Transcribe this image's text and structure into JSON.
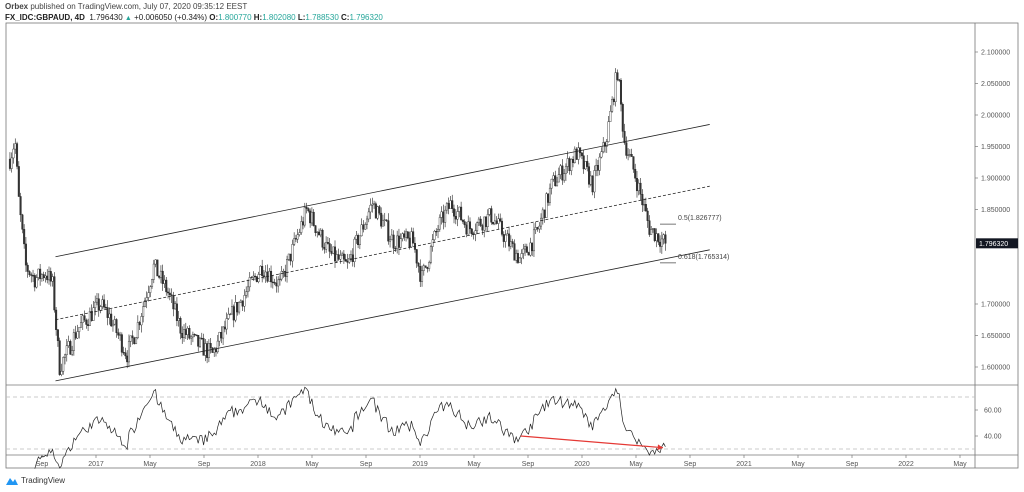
{
  "header": {
    "publisher": "Orbex",
    "published_text": "published on TradingView.com, July 07, 2020 09:35:12 EEST",
    "symbol": "FX_IDC:GBPAUD, 4D",
    "last": "1.796430",
    "change": "+0.006050 (+0.34%)",
    "o_label": "O:",
    "o": "1.800770",
    "h_label": "H:",
    "h": "1.802080",
    "l_label": "L:",
    "l": "1.788530",
    "c_label": "C:",
    "c": "1.796320"
  },
  "footer": {
    "brand": "TradingView",
    "icon": "tradingview-logo-icon"
  },
  "colors": {
    "up_candle": "#ffffff",
    "down_candle": "#333333",
    "accent": "#26a69a",
    "arrow": "#e53935",
    "price_tag": "#131722"
  },
  "chart_data": [
    {
      "type": "candlestick",
      "timeframe": "4D",
      "ylim": [
        1.575,
        2.115
      ],
      "y_ticks": [
        "2.100000",
        "2.050000",
        "2.000000",
        "1.950000",
        "1.900000",
        "1.850000",
        "1.700000",
        "1.650000",
        "1.600000"
      ],
      "y_tick_values": [
        2.1,
        2.05,
        2.0,
        1.95,
        1.9,
        1.85,
        1.7,
        1.65,
        1.6
      ],
      "current_price_label": "1.796320",
      "current_price": 1.79632,
      "x_ticks": [
        "Sep",
        "2017",
        "May",
        "Sep",
        "2018",
        "May",
        "Sep",
        "2019",
        "May",
        "Sep",
        "2020",
        "May",
        "Sep",
        "2021",
        "May",
        "Sep",
        "2022",
        "May"
      ],
      "x_tick_dates": [
        "2016-09",
        "2017-01",
        "2017-05",
        "2017-09",
        "2018-01",
        "2018-05",
        "2018-09",
        "2019-01",
        "2019-05",
        "2019-09",
        "2020-01",
        "2020-05",
        "2020-09",
        "2021-01",
        "2021-05",
        "2021-09",
        "2022-01",
        "2022-05"
      ],
      "approx_price_path": [
        [
          "2016-06-20",
          1.93
        ],
        [
          "2016-07-01",
          1.96
        ],
        [
          "2016-07-10",
          1.86
        ],
        [
          "2016-07-25",
          1.76
        ],
        [
          "2016-08-15",
          1.74
        ],
        [
          "2016-09-10",
          1.75
        ],
        [
          "2016-09-25",
          1.73
        ],
        [
          "2016-10-10",
          1.6
        ],
        [
          "2016-10-25",
          1.62
        ],
        [
          "2016-11-20",
          1.66
        ],
        [
          "2017-01-10",
          1.7
        ],
        [
          "2017-02-01",
          1.68
        ],
        [
          "2017-03-10",
          1.62
        ],
        [
          "2017-04-01",
          1.66
        ],
        [
          "2017-05-10",
          1.76
        ],
        [
          "2017-06-10",
          1.72
        ],
        [
          "2017-07-10",
          1.66
        ],
        [
          "2017-08-10",
          1.64
        ],
        [
          "2017-09-20",
          1.62
        ],
        [
          "2017-11-01",
          1.68
        ],
        [
          "2018-01-10",
          1.76
        ],
        [
          "2018-02-20",
          1.73
        ],
        [
          "2018-04-20",
          1.85
        ],
        [
          "2018-06-10",
          1.78
        ],
        [
          "2018-07-20",
          1.76
        ],
        [
          "2018-09-15",
          1.86
        ],
        [
          "2018-11-01",
          1.8
        ],
        [
          "2018-12-15",
          1.8
        ],
        [
          "2019-01-05",
          1.74
        ],
        [
          "2019-02-10",
          1.82
        ],
        [
          "2019-03-10",
          1.86
        ],
        [
          "2019-04-20",
          1.82
        ],
        [
          "2019-06-10",
          1.84
        ],
        [
          "2019-07-25",
          1.79
        ],
        [
          "2019-08-15",
          1.77
        ],
        [
          "2019-09-20",
          1.81
        ],
        [
          "2019-10-25",
          1.89
        ],
        [
          "2019-12-20",
          1.94
        ],
        [
          "2020-01-25",
          1.89
        ],
        [
          "2020-02-25",
          1.96
        ],
        [
          "2020-03-20",
          2.07
        ],
        [
          "2020-04-05",
          1.96
        ],
        [
          "2020-05-01",
          1.9
        ],
        [
          "2020-06-01",
          1.82
        ],
        [
          "2020-07-07",
          1.79632
        ]
      ],
      "trendlines": {
        "upper": [
          [
            "2016-10-01",
            1.775
          ],
          [
            "2020-10-15",
            1.985
          ]
        ],
        "middle_dashed": [
          [
            "2016-10-01",
            1.675
          ],
          [
            "2020-10-15",
            1.887
          ]
        ],
        "lower": [
          [
            "2016-10-01",
            1.578
          ],
          [
            "2020-10-15",
            1.786
          ]
        ]
      },
      "fib_levels": [
        {
          "label": "0.5(1.826777)",
          "value": 1.826777
        },
        {
          "label": "0.618(1.765314)",
          "value": 1.765314
        }
      ]
    },
    {
      "type": "line",
      "indicator_note": "oscillator pane",
      "ylim": [
        22,
        78
      ],
      "y_ticks": [
        "60.00",
        "40.00"
      ],
      "y_tick_values": [
        60,
        40
      ],
      "guide_levels": [
        70,
        30
      ],
      "divergence_arrow": [
        [
          "2019-08-15",
          40
        ],
        [
          "2020-07-01",
          31
        ]
      ]
    }
  ]
}
